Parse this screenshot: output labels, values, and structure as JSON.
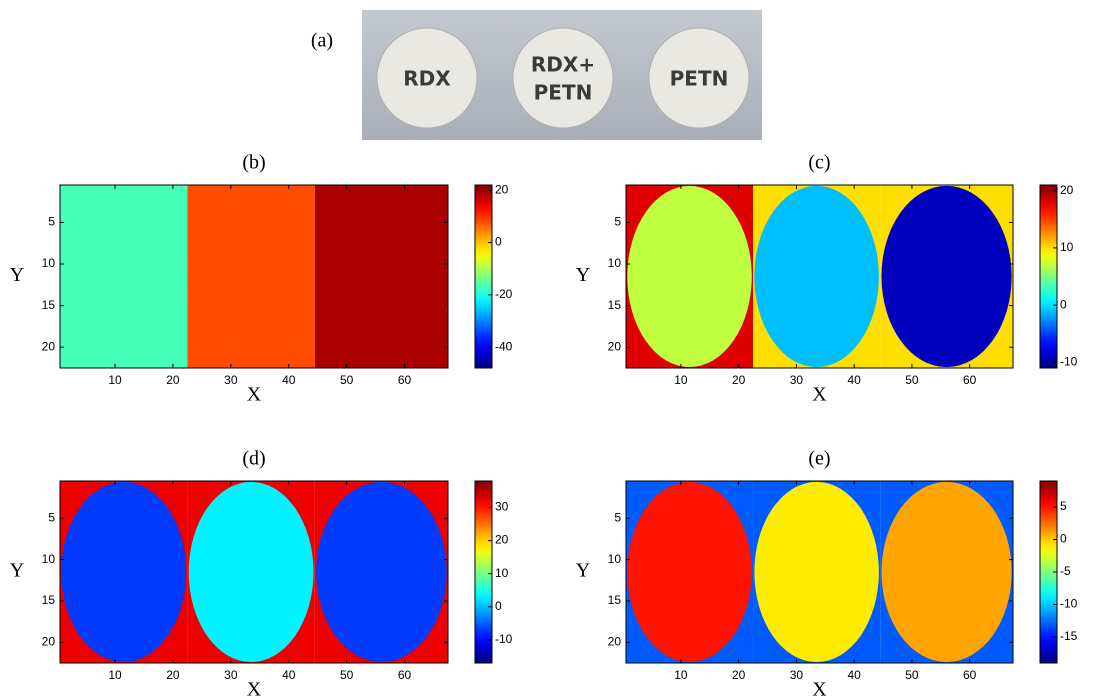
{
  "photo": {
    "label": "(a)",
    "pellets": [
      [
        "RDX"
      ],
      [
        "RDX+",
        "PETN"
      ],
      [
        "PETN"
      ]
    ]
  },
  "chart_data": [
    {
      "type": "heatmap",
      "title": "(b)",
      "xlabel": "X",
      "ylabel": "Y",
      "xlim": [
        0.5,
        67.5
      ],
      "ylim": [
        0.5,
        22.5
      ],
      "y_direction": "reverse",
      "xticks": [
        10,
        20,
        30,
        40,
        50,
        60
      ],
      "yticks": [
        5,
        10,
        15,
        20
      ],
      "regions": [
        {
          "x": [
            0.5,
            22.5
          ],
          "value": -17,
          "edge": -17
        },
        {
          "x": [
            22.5,
            44.5
          ],
          "value": 8,
          "edge": 8
        },
        {
          "x": [
            44.5,
            67.5
          ],
          "value": 19,
          "edge": 19
        }
      ],
      "colorbar": {
        "lim": [
          -48,
          22
        ],
        "ticks": [
          20,
          0,
          -20,
          -40
        ]
      }
    },
    {
      "type": "heatmap",
      "title": "(c)",
      "xlabel": "X",
      "ylabel": "Y",
      "xlim": [
        0.5,
        67.5
      ],
      "ylim": [
        0.5,
        22.5
      ],
      "y_direction": "reverse",
      "xticks": [
        10,
        20,
        30,
        40,
        50,
        60
      ],
      "yticks": [
        5,
        10,
        15,
        20
      ],
      "regions": [
        {
          "x": [
            0.5,
            22.5
          ],
          "value": 7,
          "edge": 18
        },
        {
          "x": [
            22.5,
            44.5
          ],
          "value": -1,
          "edge": 10
        },
        {
          "x": [
            44.5,
            67.5
          ],
          "value": -9,
          "edge": 10
        }
      ],
      "colorbar": {
        "lim": [
          -11,
          21
        ],
        "ticks": [
          20,
          10,
          0,
          -10
        ]
      }
    },
    {
      "type": "heatmap",
      "title": "(d)",
      "xlabel": "X",
      "ylabel": "Y",
      "xlim": [
        0.5,
        67.5
      ],
      "ylim": [
        0.5,
        22.5
      ],
      "y_direction": "reverse",
      "xticks": [
        10,
        20,
        30,
        40,
        50,
        60
      ],
      "yticks": [
        5,
        10,
        15,
        20
      ],
      "regions": [
        {
          "x": [
            0.5,
            22.5
          ],
          "value": -7,
          "edge": 32
        },
        {
          "x": [
            22.5,
            44.5
          ],
          "value": 3,
          "edge": 32
        },
        {
          "x": [
            44.5,
            67.5
          ],
          "value": -7,
          "edge": 32
        }
      ],
      "colorbar": {
        "lim": [
          -17,
          38
        ],
        "ticks": [
          30,
          20,
          10,
          0,
          -10
        ]
      }
    },
    {
      "type": "heatmap",
      "title": "(e)",
      "xlabel": "X",
      "ylabel": "Y",
      "xlim": [
        0.5,
        67.5
      ],
      "ylim": [
        0.5,
        22.5
      ],
      "y_direction": "reverse",
      "xticks": [
        10,
        20,
        30,
        40,
        50,
        60
      ],
      "yticks": [
        5,
        10,
        15,
        20
      ],
      "regions": [
        {
          "x": [
            0.5,
            22.5
          ],
          "value": 5,
          "edge": -13
        },
        {
          "x": [
            22.5,
            44.5
          ],
          "value": -1,
          "edge": -13
        },
        {
          "x": [
            44.5,
            67.5
          ],
          "value": 1,
          "edge": -13
        }
      ],
      "colorbar": {
        "lim": [
          -19,
          9
        ],
        "ticks": [
          5,
          0,
          -5,
          -10,
          -15
        ]
      }
    }
  ]
}
